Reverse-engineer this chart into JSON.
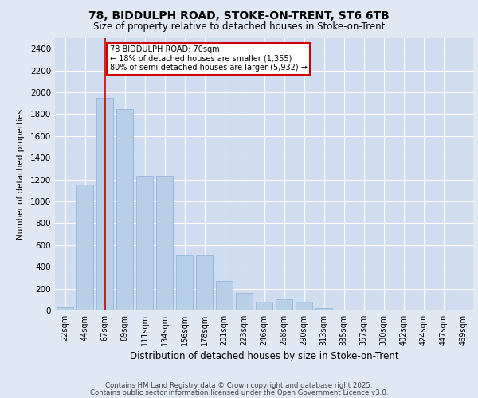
{
  "title1": "78, BIDDULPH ROAD, STOKE-ON-TRENT, ST6 6TB",
  "title2": "Size of property relative to detached houses in Stoke-on-Trent",
  "xlabel": "Distribution of detached houses by size in Stoke-on-Trent",
  "ylabel": "Number of detached properties",
  "categories": [
    "22sqm",
    "44sqm",
    "67sqm",
    "89sqm",
    "111sqm",
    "134sqm",
    "156sqm",
    "178sqm",
    "201sqm",
    "223sqm",
    "246sqm",
    "268sqm",
    "290sqm",
    "313sqm",
    "335sqm",
    "357sqm",
    "380sqm",
    "402sqm",
    "424sqm",
    "447sqm",
    "469sqm"
  ],
  "values": [
    30,
    1150,
    1950,
    1850,
    1230,
    1230,
    510,
    510,
    270,
    160,
    80,
    100,
    80,
    20,
    10,
    10,
    5,
    5,
    2,
    2,
    1
  ],
  "bar_color": "#b8cfe8",
  "bar_edge_color": "#8aafd4",
  "vline_x_index": 2,
  "vline_color": "#cc0000",
  "annotation_title": "78 BIDDULPH ROAD: 70sqm",
  "annotation_line1": "← 18% of detached houses are smaller (1,355)",
  "annotation_line2": "80% of semi-detached houses are larger (5,932) →",
  "annotation_box_edgecolor": "#cc0000",
  "annotation_box_facecolor": "#ffffff",
  "ylim": [
    0,
    2500
  ],
  "yticks": [
    0,
    200,
    400,
    600,
    800,
    1000,
    1200,
    1400,
    1600,
    1800,
    2000,
    2200,
    2400
  ],
  "background_color": "#e0e8f4",
  "plot_bg_color": "#d0ddf0",
  "footer1": "Contains HM Land Registry data © Crown copyright and database right 2025.",
  "footer2": "Contains public sector information licensed under the Open Government Licence v3.0.",
  "title1_fontsize": 10,
  "title2_fontsize": 8.5,
  "footer_fontsize": 6.2,
  "xlabel_fontsize": 8.5,
  "ylabel_fontsize": 7.5,
  "tick_fontsize": 7,
  "annot_fontsize": 7
}
